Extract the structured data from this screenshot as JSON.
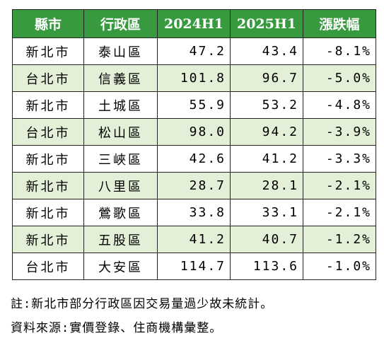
{
  "table": {
    "headers": [
      "縣市",
      "行政區",
      "2024H1",
      "2025H1",
      "漲跌幅"
    ],
    "rows": [
      [
        "新北市",
        "泰山區",
        "47.2",
        "43.4",
        "-8.1%"
      ],
      [
        "台北市",
        "信義區",
        "101.8",
        "96.7",
        "-5.0%"
      ],
      [
        "新北市",
        "土城區",
        "55.9",
        "53.2",
        "-4.8%"
      ],
      [
        "台北市",
        "松山區",
        "98.0",
        "94.2",
        "-3.9%"
      ],
      [
        "新北市",
        "三峽區",
        "42.6",
        "41.2",
        "-3.3%"
      ],
      [
        "新北市",
        "八里區",
        "28.7",
        "28.1",
        "-2.1%"
      ],
      [
        "新北市",
        "鶯歌區",
        "33.8",
        "33.1",
        "-2.1%"
      ],
      [
        "新北市",
        "五股區",
        "41.2",
        "40.7",
        "-1.2%"
      ],
      [
        "台北市",
        "大安區",
        "114.7",
        "113.6",
        "-1.0%"
      ]
    ]
  },
  "notes": {
    "note": "註:新北市部分行政區因交易量過少故未統計。",
    "source": "資料來源:實價登錄、住商機構彙整。"
  },
  "colors": {
    "header_bg": "#379a3f",
    "header_text": "#ffffff",
    "alt_row_bg": "#e3efd6"
  }
}
